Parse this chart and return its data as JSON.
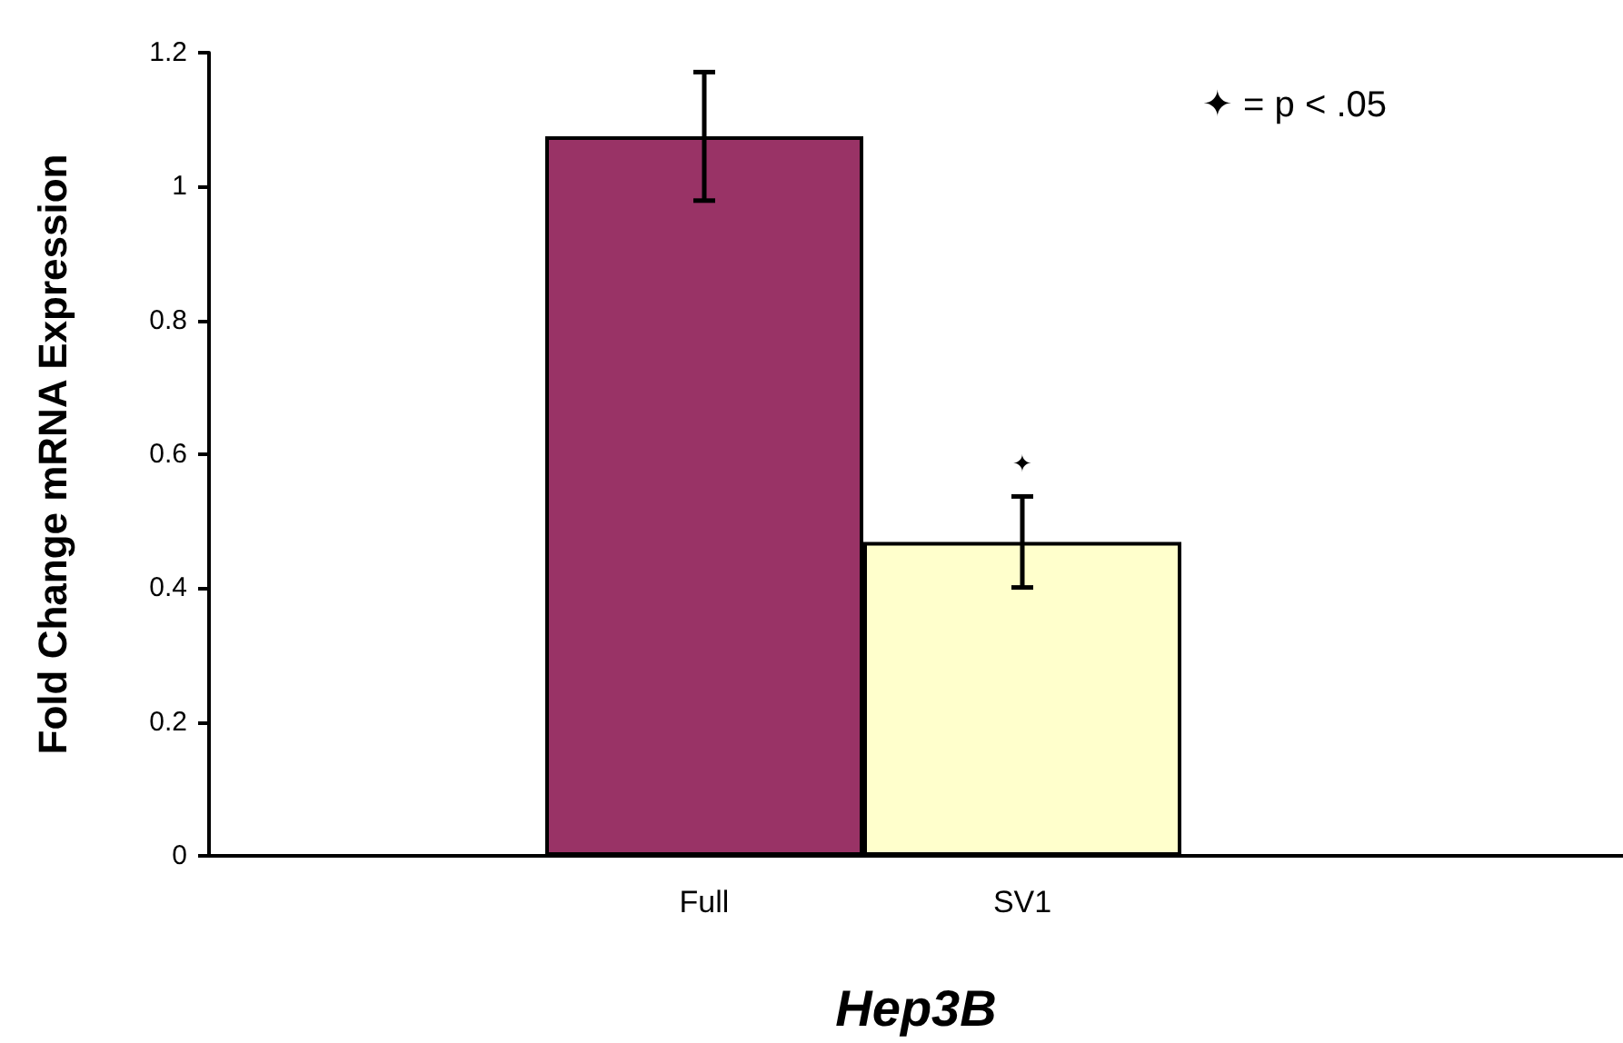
{
  "chart_data": {
    "type": "bar",
    "xlabel": "Hep3B",
    "ylabel": "Fold Change mRNA Expression",
    "categories": [
      "Full",
      "SV1"
    ],
    "values": [
      1.075,
      0.469
    ],
    "colors": [
      "#993366",
      "#ffffcc"
    ],
    "errors": [
      0.096,
      0.068
    ],
    "ylim": [
      0,
      1.2
    ],
    "yticks": [
      0,
      0.2,
      0.4,
      0.6,
      0.8,
      1,
      1.2
    ],
    "grid": false,
    "annotations": [
      "✦",
      "✦ = p < .05"
    ]
  }
}
